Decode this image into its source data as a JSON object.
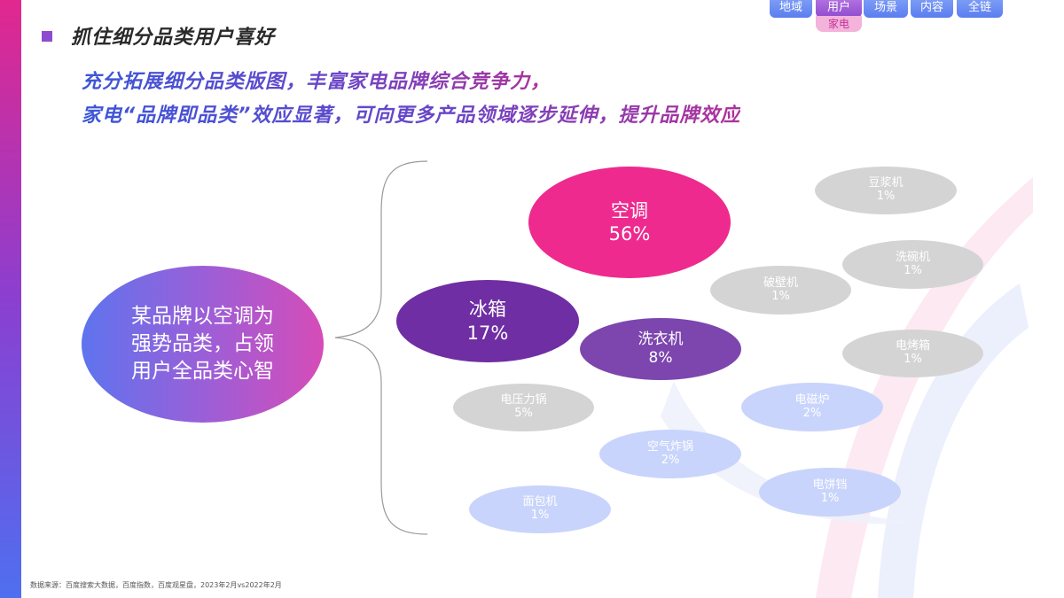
{
  "nav": {
    "tabs": [
      {
        "label": "地域"
      },
      {
        "label": "用户",
        "active": true
      },
      {
        "label": "场景"
      },
      {
        "label": "内容"
      },
      {
        "label": "全链"
      }
    ],
    "sub_label": "家电"
  },
  "header": {
    "title": "抓住细分品类用户喜好",
    "subtitle_line1": "充分拓展细分品类版图，丰富家电品牌综合竞争力，",
    "subtitle_line2": "家电“品牌即品类”效应显著，可向更多产品领域逐步延伸，提升品牌效应"
  },
  "diagram": {
    "center_lines": [
      "某品牌以空调为",
      "强势品类，占领",
      "用户全品类心智"
    ],
    "categories": [
      {
        "key": "kongtiao",
        "name": "空调",
        "value": "56%"
      },
      {
        "key": "bingxiang",
        "name": "冰箱",
        "value": "17%"
      },
      {
        "key": "xiyiji",
        "name": "洗衣机",
        "value": "8%"
      },
      {
        "key": "dianyaliguo",
        "name": "电压力锅",
        "value": "5%"
      },
      {
        "key": "kongqizhaguo",
        "name": "空气炸锅",
        "value": "2%"
      },
      {
        "key": "miantaoji",
        "name": "面包机",
        "value": "1%"
      },
      {
        "key": "doujiangji",
        "name": "豆浆机",
        "value": "1%"
      },
      {
        "key": "xiwanji",
        "name": "洗碗机",
        "value": "1%"
      },
      {
        "key": "pobiji",
        "name": "破壁机",
        "value": "1%"
      },
      {
        "key": "diankaoxiang",
        "name": "电烤箱",
        "value": "1%"
      },
      {
        "key": "diancilu",
        "name": "电磁炉",
        "value": "2%"
      },
      {
        "key": "dianbingdang",
        "name": "电饼铛",
        "value": "1%"
      }
    ]
  },
  "colors": {
    "pink": "#ee2a8f",
    "purple_dark": "#6f2ea3",
    "purple_mid": "#7c46ae",
    "grey": "#d4d4d4",
    "light_blue": "#c8d4fb",
    "accent_square": "#8f4bcf"
  },
  "footnote": "数据来源：百度搜索大数据，百度指数，百度观星盘，2023年2月vs2022年2月"
}
